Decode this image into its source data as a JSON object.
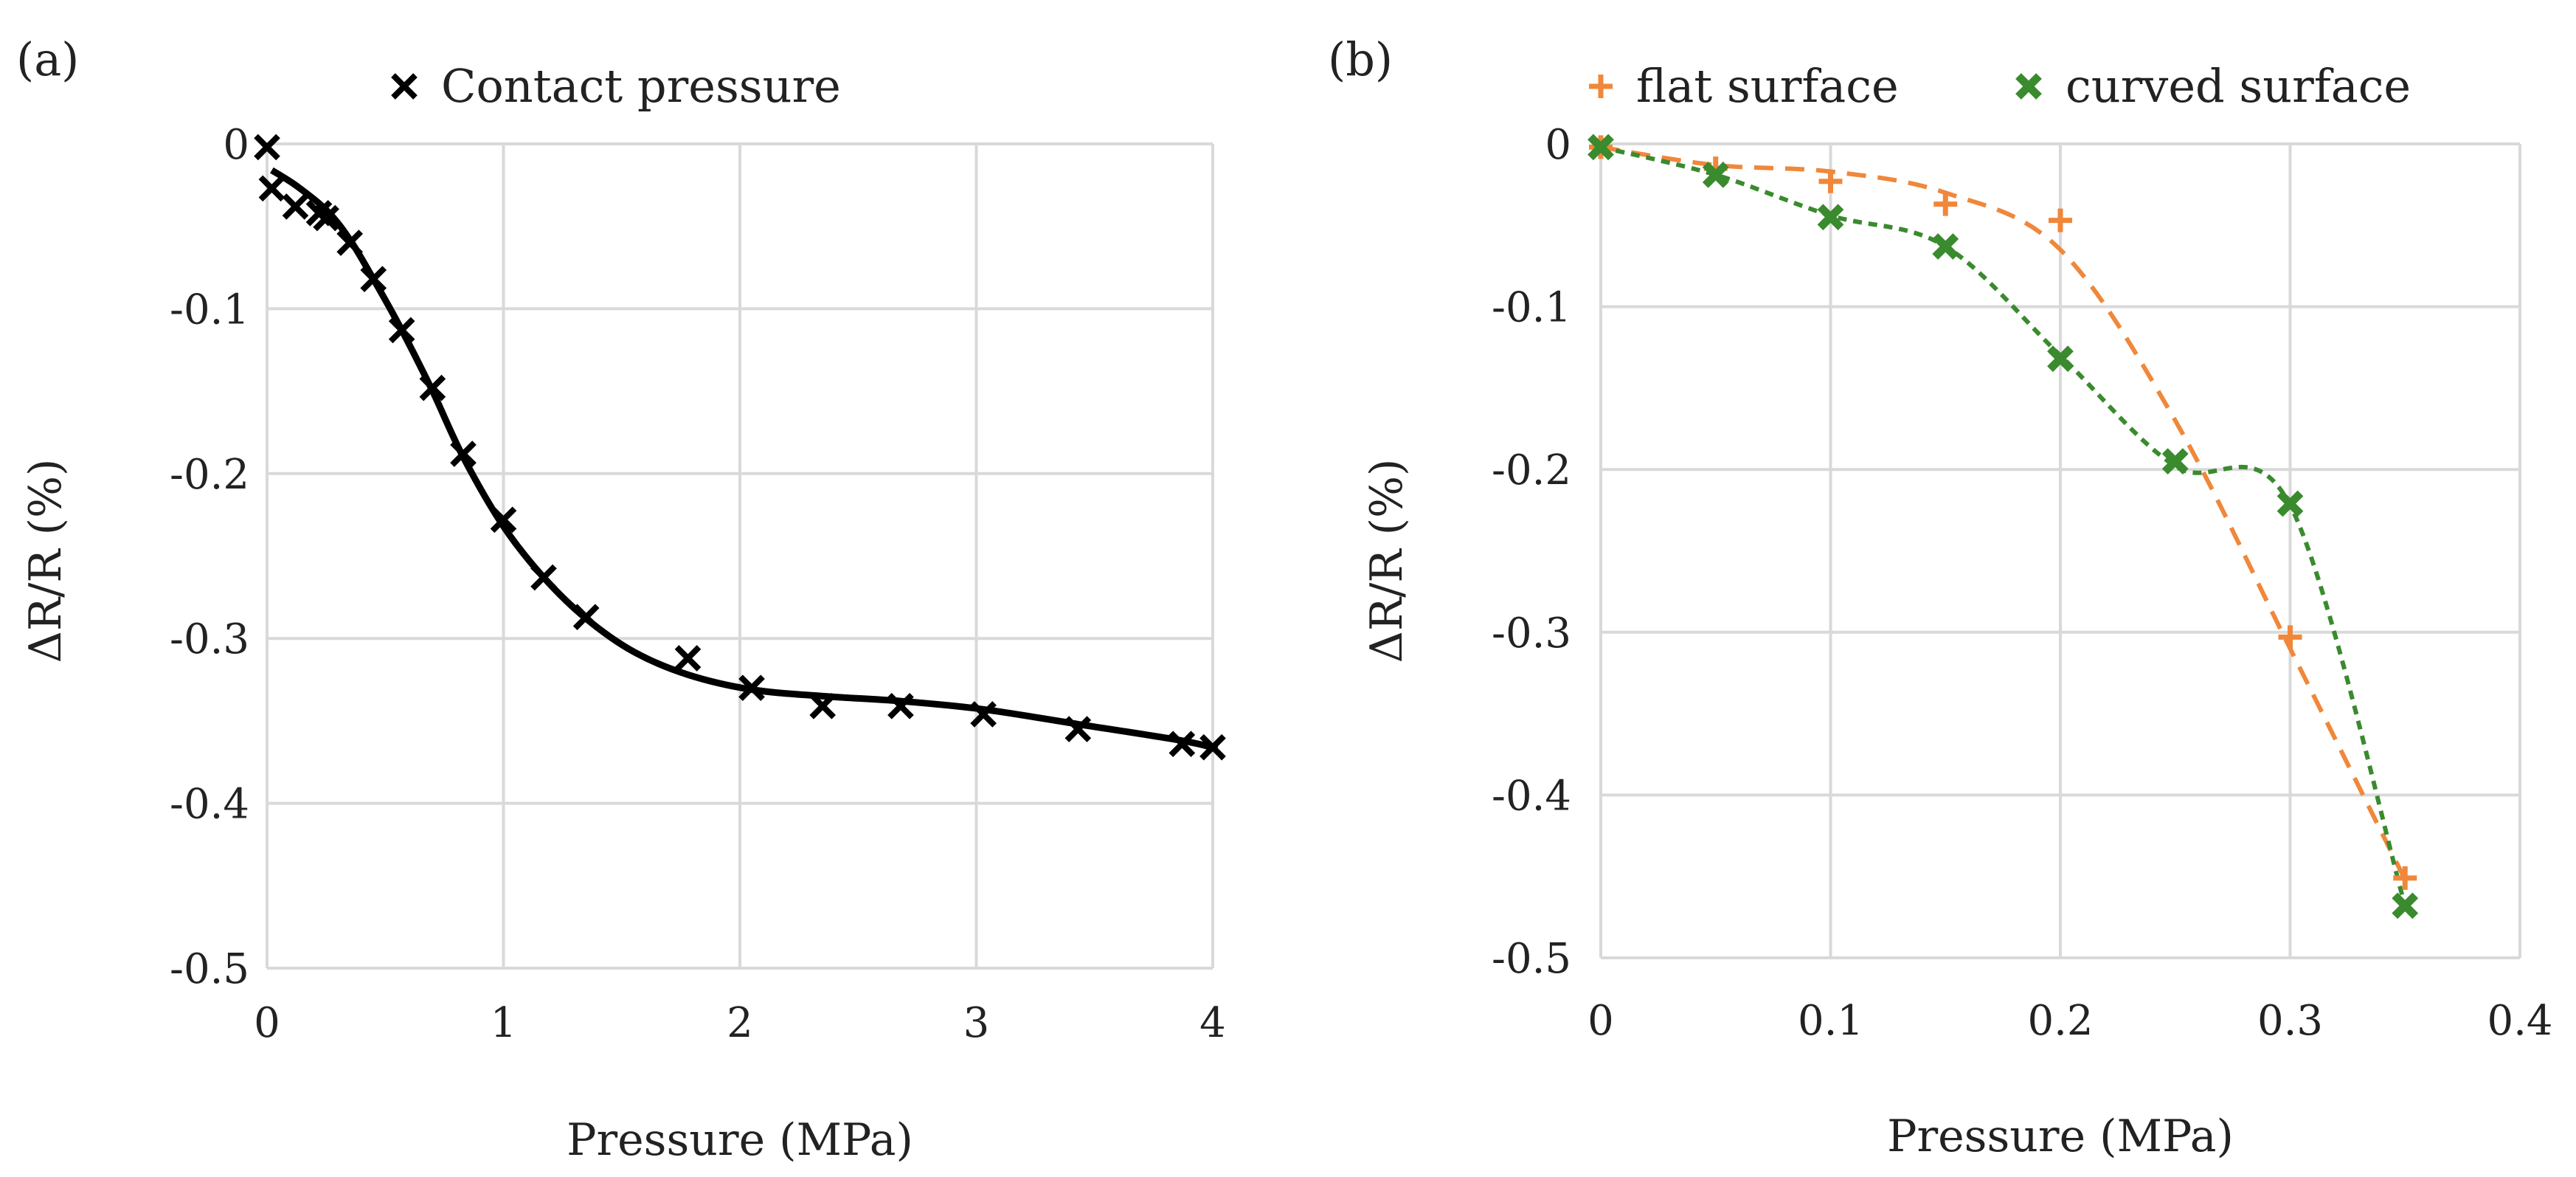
{
  "chart_data": [
    {
      "type": "scatter",
      "panel_label": "(a)",
      "xlabel": "Pressure (MPa)",
      "ylabel": "ΔR/R (%)",
      "xlim": [
        0,
        4
      ],
      "ylim": [
        -0.5,
        0
      ],
      "xticks": [
        0,
        1,
        2,
        3,
        4
      ],
      "xtick_labels": [
        "0",
        "1",
        "2",
        "3",
        "4"
      ],
      "yticks": [
        0,
        -0.1,
        -0.2,
        -0.3,
        -0.4,
        -0.5
      ],
      "ytick_labels": [
        "0",
        "-0.1",
        "-0.2",
        "-0.3",
        "-0.4",
        "-0.5"
      ],
      "grid": true,
      "legend_position": "top",
      "series": [
        {
          "name": "Contact pressure",
          "marker": "x",
          "color": "#000000",
          "x": [
            0.0,
            0.02,
            0.12,
            0.22,
            0.25,
            0.35,
            0.45,
            0.57,
            0.7,
            0.83,
            1.0,
            1.17,
            1.35,
            1.78,
            2.05,
            2.35,
            2.68,
            3.03,
            3.43,
            3.87,
            4.0
          ],
          "y": [
            -0.002,
            -0.027,
            -0.038,
            -0.042,
            -0.045,
            -0.06,
            -0.082,
            -0.113,
            -0.148,
            -0.188,
            -0.228,
            -0.263,
            -0.287,
            -0.312,
            -0.33,
            -0.341,
            -0.341,
            -0.346,
            -0.355,
            -0.364,
            -0.366
          ]
        }
      ],
      "fit_line": {
        "name": "Contact pressure trend",
        "color": "#000000",
        "style": "solid",
        "x": [
          0.02,
          0.12,
          0.25,
          0.35,
          0.45,
          0.57,
          0.7,
          0.83,
          1.0,
          1.17,
          1.35,
          1.55,
          1.78,
          2.05,
          2.35,
          2.68,
          3.03,
          3.43,
          3.87,
          4.02
        ],
        "y": [
          -0.016,
          -0.025,
          -0.04,
          -0.058,
          -0.082,
          -0.113,
          -0.15,
          -0.19,
          -0.232,
          -0.263,
          -0.288,
          -0.308,
          -0.322,
          -0.331,
          -0.335,
          -0.338,
          -0.343,
          -0.352,
          -0.362,
          -0.367
        ]
      }
    },
    {
      "type": "scatter",
      "panel_label": "(b)",
      "xlabel": "Pressure (MPa)",
      "ylabel": "ΔR/R (%)",
      "xlim": [
        0,
        0.4
      ],
      "ylim": [
        -0.5,
        0
      ],
      "xticks": [
        0,
        0.1,
        0.2,
        0.3,
        0.4
      ],
      "xtick_labels": [
        "0",
        "0.1",
        "0.2",
        "0.3",
        "0.4"
      ],
      "yticks": [
        0,
        -0.1,
        -0.2,
        -0.3,
        -0.4,
        -0.5
      ],
      "ytick_labels": [
        "0",
        "-0.1",
        "-0.2",
        "-0.3",
        "-0.4",
        "-0.5"
      ],
      "grid": true,
      "legend_position": "top",
      "series": [
        {
          "name": "flat surface",
          "marker": "plus",
          "color": "#f0873a",
          "line_style": "dashed",
          "x": [
            0,
            0.05,
            0.1,
            0.15,
            0.2,
            0.3,
            0.35
          ],
          "y": [
            -0.002,
            -0.015,
            -0.023,
            -0.037,
            -0.047,
            -0.303,
            -0.451
          ]
        },
        {
          "name": "curved surface",
          "marker": "x-bold",
          "color": "#3a8a2e",
          "line_style": "dotted",
          "x": [
            0,
            0.05,
            0.1,
            0.15,
            0.2,
            0.25,
            0.3,
            0.35
          ],
          "y": [
            -0.002,
            -0.019,
            -0.045,
            -0.063,
            -0.132,
            -0.195,
            -0.221,
            -0.468
          ]
        }
      ],
      "trend_lines": [
        {
          "name": "flat surface trend",
          "color": "#f0873a",
          "style": "dashed",
          "x": [
            0,
            0.05,
            0.1,
            0.15,
            0.2,
            0.25,
            0.3,
            0.35
          ],
          "y": [
            -0.002,
            -0.013,
            -0.017,
            -0.03,
            -0.065,
            -0.17,
            -0.31,
            -0.452
          ]
        },
        {
          "name": "curved surface trend",
          "color": "#3a8a2e",
          "style": "dotted",
          "x": [
            0,
            0.05,
            0.1,
            0.15,
            0.2,
            0.25,
            0.3,
            0.35
          ],
          "y": [
            -0.002,
            -0.019,
            -0.044,
            -0.063,
            -0.13,
            -0.198,
            -0.222,
            -0.468
          ]
        }
      ]
    }
  ]
}
